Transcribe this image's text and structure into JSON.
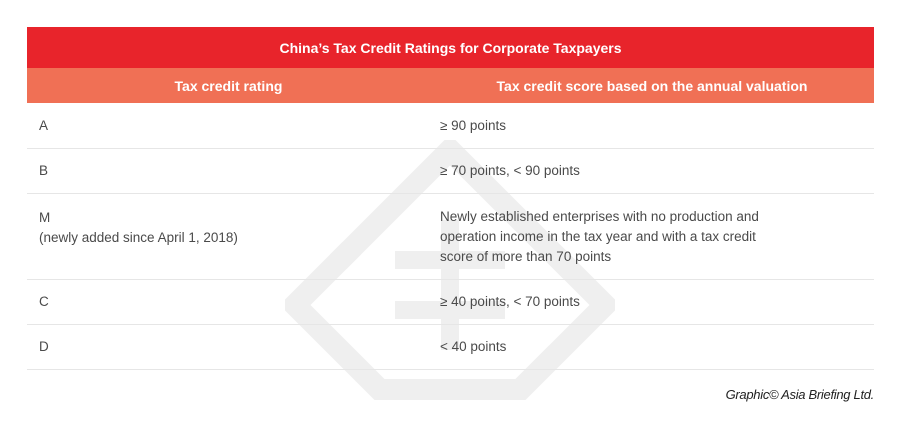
{
  "title": "China’s Tax Credit Ratings for Corporate Taxpayers",
  "columns": [
    "Tax credit rating",
    "Tax credit score based on the annual valuation"
  ],
  "rows": [
    {
      "rating": "A",
      "note": "",
      "score": "≥ 90 points"
    },
    {
      "rating": "B",
      "note": "",
      "score": "≥ 70 points, < 90 points"
    },
    {
      "rating": "M",
      "note": "(newly added since April 1, 2018)",
      "score": "Newly established enterprises with no production and operation income in the tax year and with a tax credit score of more than 70 points"
    },
    {
      "rating": "C",
      "note": "",
      "score": "≥ 40 points, < 70 points"
    },
    {
      "rating": "D",
      "note": "",
      "score": "< 40 points"
    }
  ],
  "credit": "Graphic© Asia Briefing Ltd.",
  "colors": {
    "title_bg": "#e8242b",
    "header_bg": "#f07055"
  }
}
